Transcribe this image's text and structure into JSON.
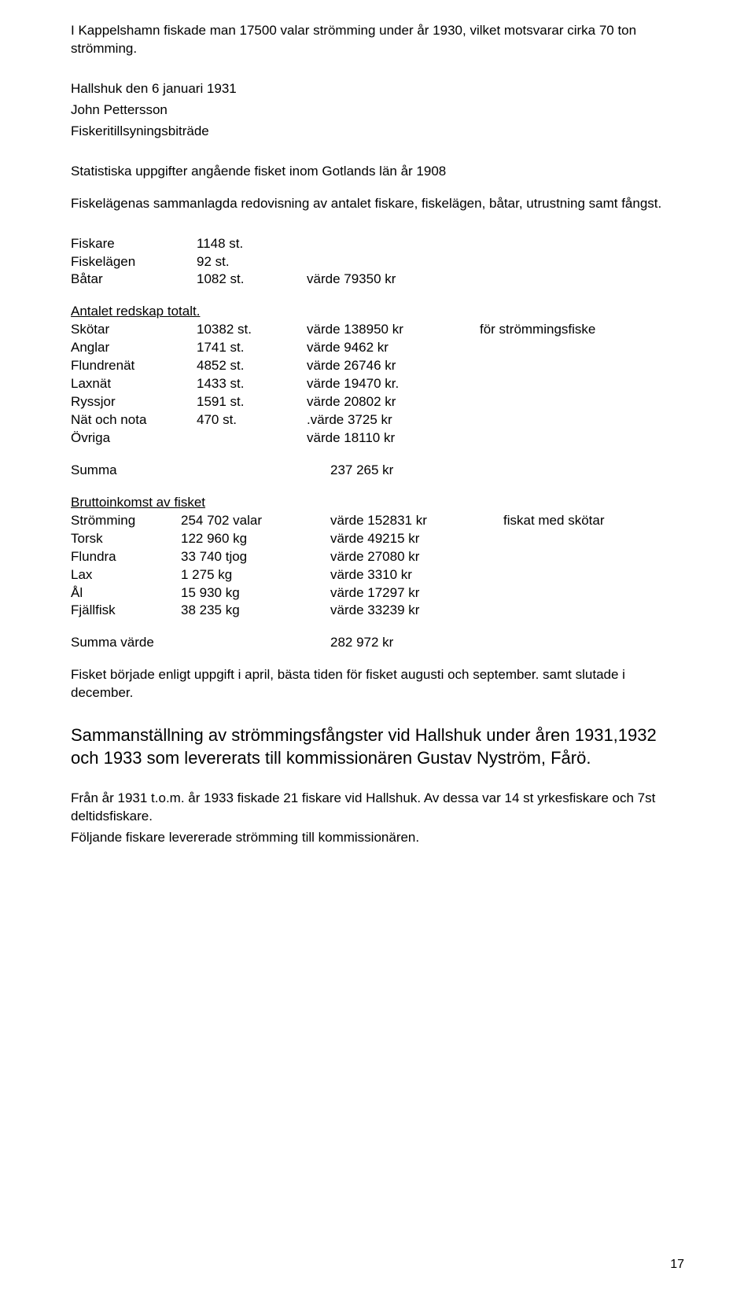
{
  "intro": "I Kappelshamn fiskade man 17500 valar strömming under år 1930, vilket motsvarar cirka 70 ton strömming.",
  "sign_line1": "Hallshuk den 6 januari 1931",
  "sign_line2": "John Pettersson",
  "sign_line3": "Fiskeritillsyningsbiträde",
  "stats_heading": "Statistiska uppgifter angående fisket inom Gotlands län år 1908",
  "summary_line": "Fiskelägenas sammanlagda redovisning av antalet fiskare, fiskelägen, båtar, utrustning samt fångst.",
  "basic": {
    "fiskare": {
      "label": "Fiskare",
      "num": "1148 st."
    },
    "fiskelagen": {
      "label": "Fiskelägen",
      "num": "92 st."
    },
    "batar": {
      "label": "Båtar",
      "num": "1082 st.",
      "val": "värde   79350 kr"
    }
  },
  "redskap": {
    "heading": "Antalet redskap totalt.",
    "rows": {
      "skotar": {
        "label": "Skötar",
        "num": "10382 st.",
        "val": "värde 138950 kr",
        "note": "för strömmingsfiske"
      },
      "anglar": {
        "label": "Anglar",
        "num": "1741 st.",
        "val": "värde     9462 kr",
        "note": ""
      },
      "flundre": {
        "label": "Flundrenät",
        "num": "4852 st.",
        "val": "värde   26746 kr",
        "note": ""
      },
      "laxnat": {
        "label": "Laxnät",
        "num": "1433 st.",
        "val": "värde   19470 kr.",
        "note": ""
      },
      "ryssjor": {
        "label": "Ryssjor",
        "num": "1591 st.",
        "val": "värde   20802 kr",
        "note": ""
      },
      "natnota": {
        "label": "Nät och nota",
        "num": "470 st.",
        "val": ".värde     3725 kr",
        "note": ""
      },
      "ovriga": {
        "label": "Övriga",
        "num": "",
        "val": "värde   18110 kr",
        "note": ""
      }
    }
  },
  "summa1": {
    "label": "Summa",
    "val": "237 265 kr"
  },
  "brutto": {
    "heading": "Bruttoinkomst av fisket",
    "rows": {
      "stromming": {
        "label": "Strömming",
        "qty": "254 702 valar",
        "val": "värde 152831 kr",
        "note": "fiskat med skötar"
      },
      "torsk": {
        "label": "Torsk",
        "qty": "122 960 kg",
        "val": "värde   49215 kr",
        "note": ""
      },
      "flundra": {
        "label": "Flundra",
        "qty": "33 740 tjog",
        "val": "värde   27080 kr",
        "note": ""
      },
      "lax": {
        "label": "Lax",
        "qty": "1 275 kg",
        "val": "värde     3310 kr",
        "note": ""
      },
      "al": {
        "label": "Ål",
        "qty": "15 930 kg",
        "val": "värde   17297 kr",
        "note": ""
      },
      "fjallfisk": {
        "label": "Fjällfisk",
        "qty": "38 235 kg",
        "val": "värde   33239 kr",
        "note": ""
      }
    }
  },
  "summa2": {
    "label": "Summa värde",
    "val": "282 972 kr"
  },
  "closing1": "Fisket började enligt uppgift i april, bästa tiden för fisket augusti och september. samt slutade i december.",
  "big_heading": "Sammanställning av strömmingsfångster vid Hallshuk under åren 1931,1932 och 1933 som levererats till kommissionären Gustav Nyström, Fårö.",
  "closing2a": "Från år 1931 t.o.m. år 1933 fiskade 21 fiskare vid Hallshuk. Av dessa var 14 st yrkesfiskare och 7st deltidsfiskare.",
  "closing2b": "Följande fiskare levererade strömming till kommissionären.",
  "page_number": "17"
}
